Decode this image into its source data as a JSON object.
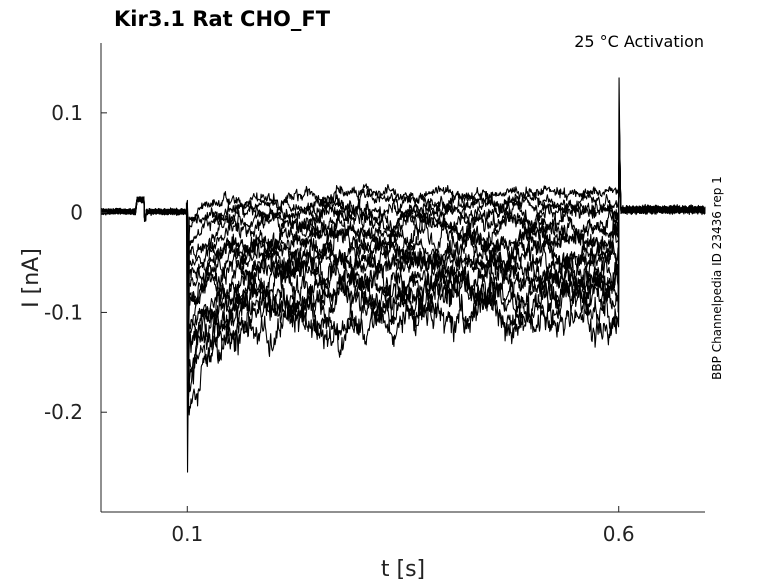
{
  "chart_data": {
    "type": "line",
    "title": "Kir3.1  Rat  CHO_FT",
    "annotation": "25 °C  Activation",
    "side_label": "BBP Channelpedia ID 23436 rep 1",
    "xlabel": "t [s]",
    "ylabel": "I [nA]",
    "xlim": [
      0.0,
      0.7
    ],
    "ylim": [
      -0.3,
      0.17
    ],
    "x_ticks": [
      {
        "value": 0.1,
        "label": "0.1"
      },
      {
        "value": 0.6,
        "label": "0.6"
      }
    ],
    "y_ticks": [
      {
        "value": 0.1,
        "label": "0.1"
      },
      {
        "value": 0.0,
        "label": "0"
      },
      {
        "value": -0.1,
        "label": "-0.1"
      },
      {
        "value": -0.2,
        "label": "-0.2"
      }
    ],
    "grid": false,
    "legend": "none",
    "protocol": {
      "step_start_s": 0.1,
      "step_end_s": 0.6,
      "onset_peak_nA": -0.26,
      "offset_peak_nA": 0.135
    },
    "series_steady_levels_nA": [
      0.02,
      0.012,
      0.005,
      -0.002,
      -0.01,
      -0.018,
      -0.025,
      -0.032,
      -0.04,
      -0.048,
      -0.056,
      -0.064,
      -0.072,
      -0.08,
      -0.088,
      -0.096,
      -0.103
    ],
    "line_color": "#000000"
  }
}
